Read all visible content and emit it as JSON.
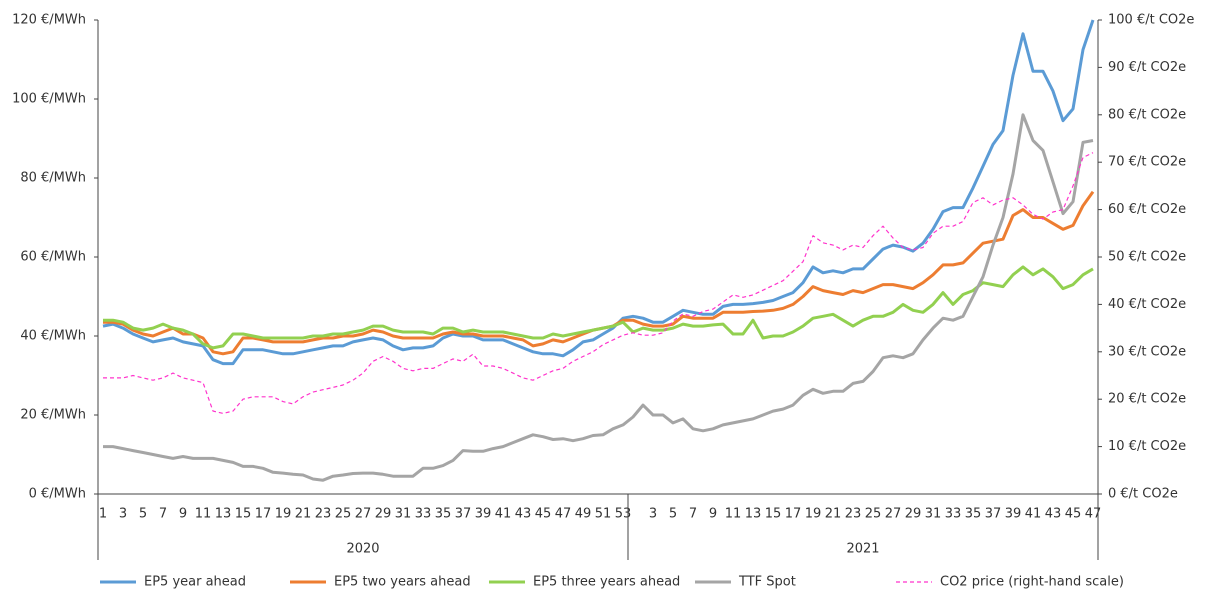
{
  "chart_data": {
    "type": "line",
    "categories": [
      "1",
      null,
      "3",
      null,
      "5",
      null,
      "7",
      null,
      "9",
      null,
      "11",
      null,
      "13",
      null,
      "15",
      null,
      "17",
      null,
      "19",
      null,
      "21",
      null,
      "23",
      null,
      "25",
      null,
      "27",
      null,
      "29",
      null,
      "31",
      null,
      "33",
      null,
      "35",
      null,
      "37",
      null,
      "39",
      null,
      "41",
      null,
      "43",
      null,
      "45",
      null,
      "47",
      null,
      "49",
      null,
      "51",
      null,
      "53",
      null,
      null,
      "3",
      null,
      "5",
      null,
      "7",
      null,
      "9",
      null,
      "11",
      null,
      "13",
      null,
      "15",
      null,
      "17",
      null,
      "19",
      null,
      "21",
      null,
      "23",
      null,
      "25",
      null,
      "27",
      null,
      "29",
      null,
      "31",
      null,
      "33",
      null,
      "35",
      null,
      "37",
      null,
      "39",
      null,
      "41",
      null,
      "43",
      null,
      "45",
      null,
      "47"
    ],
    "x_groups": [
      {
        "label": "2020",
        "size": 53
      },
      {
        "label": "2021",
        "size": 47
      }
    ],
    "ylim": [
      0,
      120
    ],
    "yticks": [
      {
        "value": 0,
        "label": "0 €/MWh"
      },
      {
        "value": 20,
        "label": "20 €/MWh"
      },
      {
        "value": 40,
        "label": "40 €/MWh"
      },
      {
        "value": 60,
        "label": "60 €/MWh"
      },
      {
        "value": 80,
        "label": "80 €/MWh"
      },
      {
        "value": 100,
        "label": "100 €/MWh"
      },
      {
        "value": 120,
        "label": "120 €/MWh"
      }
    ],
    "y2lim": [
      0,
      100
    ],
    "y2ticks": [
      {
        "value": 0,
        "label": "0 €/t CO2e"
      },
      {
        "value": 10,
        "label": "10 €/t CO2e"
      },
      {
        "value": 20,
        "label": "20 €/t CO2e"
      },
      {
        "value": 30,
        "label": "30 €/t CO2e"
      },
      {
        "value": 40,
        "label": "40 €/t CO2e"
      },
      {
        "value": 50,
        "label": "50 €/t CO2e"
      },
      {
        "value": 60,
        "label": "60 €/t CO2e"
      },
      {
        "value": 70,
        "label": "70 €/t CO2e"
      },
      {
        "value": 80,
        "label": "80 €/t CO2e"
      },
      {
        "value": 90,
        "label": "90 €/t CO2e"
      },
      {
        "value": 100,
        "label": "100 €/t CO2e"
      }
    ],
    "legend": "bottom",
    "series": [
      {
        "name": "EP5 year ahead",
        "color": "#5b9bd5",
        "values": [
          42.5,
          43,
          42,
          40.5,
          39.5,
          38.5,
          39,
          39.5,
          38.5,
          38,
          37.5,
          34,
          33,
          33,
          36.5,
          36.5,
          36.5,
          36,
          35.5,
          35.5,
          36,
          36.5,
          37,
          37.5,
          37.5,
          38.5,
          39,
          39.5,
          39,
          37.5,
          36.5,
          37,
          37,
          37.5,
          39.5,
          40.5,
          40,
          40,
          39,
          39,
          39,
          38,
          37,
          36,
          35.5,
          35.5,
          35,
          36.5,
          38.5,
          39,
          40.5,
          42,
          44.5,
          45,
          44.5,
          43.5,
          43.5,
          45,
          46.5,
          46,
          45.5,
          45.5,
          47.5,
          48,
          48,
          48.2,
          48.5,
          49,
          50,
          51,
          53.5,
          57.5,
          56,
          56.5,
          56,
          57,
          57,
          59.5,
          62,
          63,
          62.5,
          61.5,
          63.5,
          67,
          71.5,
          72.5,
          72.5,
          77.5,
          83,
          88.5,
          92,
          106,
          116.5,
          107,
          107,
          102,
          94.5,
          97.5,
          112.5,
          120
        ]
      },
      {
        "name": "EP5 two years ahead",
        "color": "#ed7d31",
        "values": [
          43.5,
          43.5,
          43,
          41.5,
          40.5,
          40,
          41,
          42,
          40.5,
          40.5,
          39.5,
          36,
          35.5,
          36,
          39.5,
          39.5,
          39,
          38.5,
          38.5,
          38.5,
          38.5,
          39,
          39.5,
          39.5,
          40,
          40,
          40.5,
          41.5,
          41,
          40,
          39.5,
          39.5,
          39.5,
          39.5,
          40.5,
          41,
          40.5,
          40.5,
          40,
          40,
          40,
          39.5,
          39,
          37.5,
          38,
          39,
          38.5,
          39.5,
          40.5,
          41.5,
          42,
          42.5,
          44,
          44,
          43,
          42.5,
          42.5,
          43,
          45,
          44.5,
          44.5,
          44.5,
          46,
          46,
          46,
          46.2,
          46.3,
          46.5,
          47,
          48,
          50,
          52.5,
          51.5,
          51,
          50.5,
          51.5,
          51,
          52,
          53,
          53,
          52.5,
          52,
          53.5,
          55.5,
          58,
          58,
          58.5,
          61,
          63.5,
          64,
          64.5,
          70.5,
          72,
          70,
          70,
          68.5,
          67,
          68,
          73,
          76.5
        ]
      },
      {
        "name": "EP5 three years ahead",
        "color": "#92d050",
        "values": [
          44,
          44,
          43.5,
          42,
          41.5,
          42,
          43,
          42,
          41.5,
          40.5,
          38,
          37,
          37.5,
          40.5,
          40.5,
          40,
          39.5,
          39.5,
          39.5,
          39.5,
          39.5,
          40,
          40,
          40.5,
          40.5,
          41,
          41.5,
          42.5,
          42.5,
          41.5,
          41,
          41,
          41,
          40.5,
          42,
          42,
          41,
          41.5,
          41,
          41,
          41,
          40.5,
          40,
          39.5,
          39.5,
          40.5,
          40,
          40.5,
          41,
          41.5,
          42,
          42.5,
          43.5,
          41,
          42,
          41.5,
          41.5,
          42,
          43,
          42.5,
          42.5,
          42.8,
          43,
          40.5,
          40.5,
          44,
          39.5,
          40,
          40,
          41,
          42.5,
          44.5,
          45,
          45.5,
          44,
          42.5,
          44,
          45,
          45,
          46,
          48,
          46.5,
          46,
          48,
          51,
          48,
          50.5,
          51.5,
          53.5,
          53,
          52.5,
          55.5,
          57.5,
          55.5,
          57,
          55,
          52,
          53,
          55.5,
          57
        ]
      },
      {
        "name": "TTF Spot",
        "color": "#a5a5a5",
        "values": [
          12,
          12,
          11.5,
          11,
          10.5,
          10,
          9.5,
          9,
          9.5,
          9,
          9,
          9,
          8.5,
          8,
          7,
          7,
          6.5,
          5.5,
          5.3,
          5,
          4.8,
          3.8,
          3.5,
          4.5,
          4.8,
          5.2,
          5.3,
          5.3,
          5,
          4.5,
          4.5,
          4.5,
          6.5,
          6.5,
          7.2,
          8.5,
          11,
          10.8,
          10.8,
          11.5,
          12,
          13,
          14,
          15,
          14.5,
          13.8,
          14,
          13.5,
          14,
          14.8,
          15,
          16.5,
          17.5,
          19.5,
          22.5,
          20,
          20,
          18,
          19,
          16.5,
          16,
          16.5,
          17.5,
          18,
          18.5,
          19,
          20,
          21,
          21.5,
          22.5,
          25,
          26.5,
          25.5,
          26,
          26,
          28,
          28.5,
          31,
          34.5,
          35,
          34.5,
          35.5,
          39,
          42,
          44.5,
          44,
          45,
          50,
          55,
          63,
          70,
          81,
          96,
          89.5,
          87,
          79,
          71,
          74,
          89,
          89.5
        ]
      },
      {
        "name": "CO2 price (right-hand scale)",
        "color": "#ff33cc",
        "axis": "y2",
        "dashed": true,
        "values": [
          24.5,
          24.5,
          24.5,
          25,
          24.5,
          24,
          24.5,
          25.5,
          24.5,
          24,
          23.5,
          17.5,
          17,
          17.5,
          20,
          20.5,
          20.5,
          20.5,
          19.5,
          19,
          20.5,
          21.5,
          22,
          22.5,
          23,
          24,
          25.5,
          28,
          29,
          28,
          26.5,
          26,
          26.5,
          26.5,
          27.5,
          28.5,
          28,
          29.5,
          27,
          27,
          26.5,
          25.5,
          24.5,
          24,
          25,
          26,
          26.5,
          28,
          29,
          30,
          31.5,
          32.5,
          33.5,
          34,
          33.5,
          33.5,
          34,
          36.5,
          38,
          37.5,
          38.5,
          39,
          40.5,
          42,
          41.5,
          42,
          43,
          44,
          45,
          47,
          49,
          54.5,
          53,
          52.5,
          51.5,
          52.5,
          52,
          54.5,
          56.5,
          54,
          52,
          51.5,
          52,
          55,
          56.5,
          56.5,
          57.5,
          61.5,
          62.5,
          61,
          62,
          62.5,
          61,
          59,
          58,
          59.5,
          60,
          65,
          71,
          72
        ]
      }
    ]
  }
}
